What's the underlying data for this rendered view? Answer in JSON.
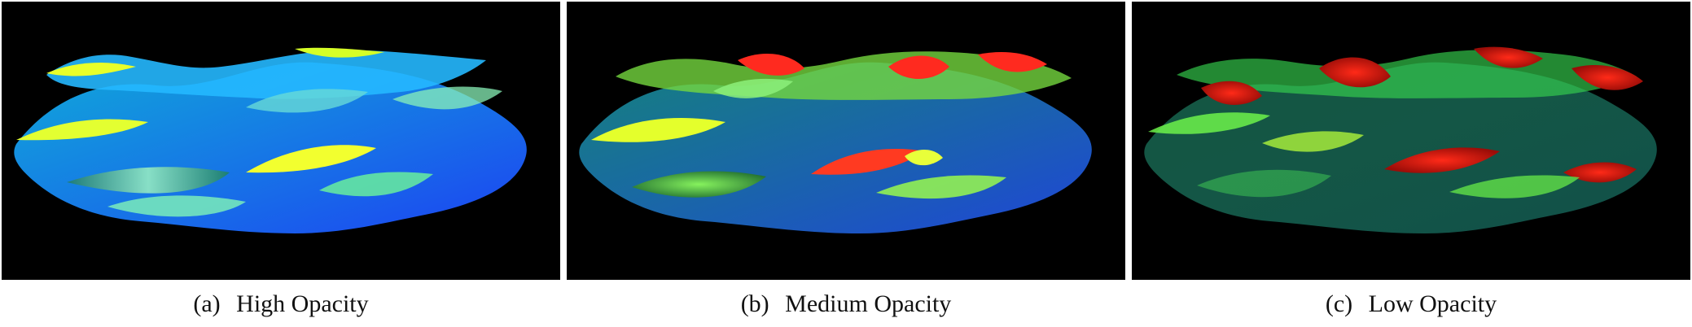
{
  "figure": {
    "panels": [
      {
        "label": "(a)",
        "caption": "High Opacity"
      },
      {
        "label": "(b)",
        "caption": "Medium Opacity"
      },
      {
        "label": "(c)",
        "caption": "Low Opacity"
      }
    ]
  },
  "colors": {
    "background": "#000000",
    "high_blue": "#1f4fff",
    "cyan": "#2fe0e8",
    "green": "#37d23a",
    "yellow": "#e8ff2a",
    "red": "#e11a15"
  }
}
